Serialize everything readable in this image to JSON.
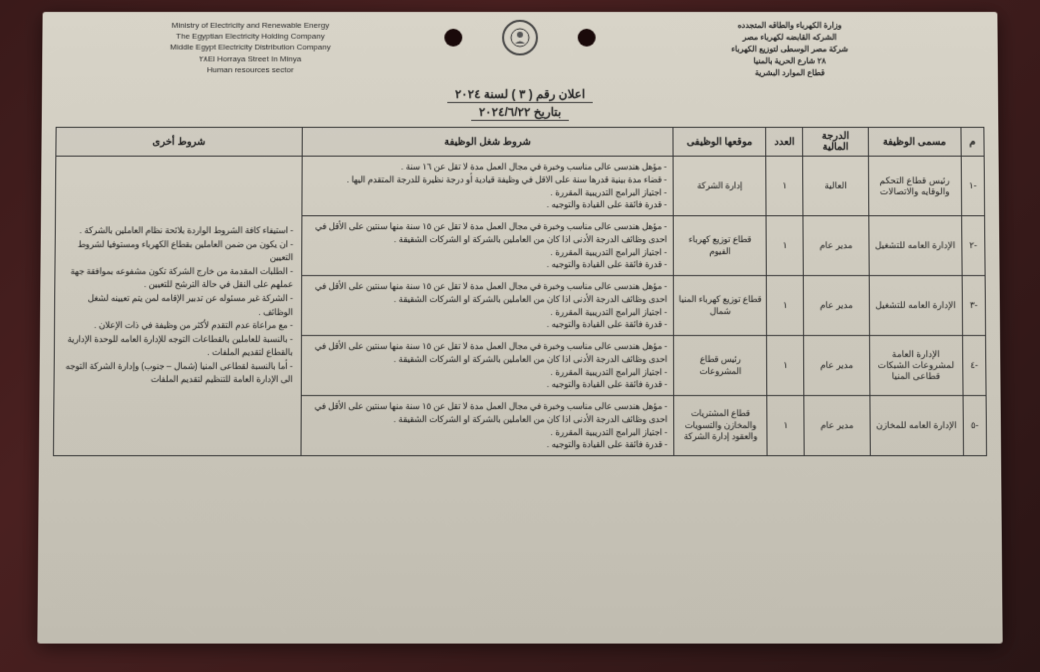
{
  "header": {
    "left": {
      "l1": "Ministry of Electricity and Renewable Energy",
      "l2": "The Egyptian Electricity Holding Company",
      "l3": "Middle Egypt Electricity Distribution Company",
      "l4": "٢٨El Horraya Street In Minya",
      "l5": "Human resources sector"
    },
    "right": {
      "l1": "وزارة الكهرباء والطاقه المتجدده",
      "l2": "الشركه القابضه لكهرباء مصر",
      "l3": "شركة مصر الوسطى لتوزيع الكهرباء",
      "l4": "٢٨ شارع الحرية بالمنيا",
      "l5": "قطاع الموارد البشرية"
    }
  },
  "title": {
    "line1": "اعلان رقم ( ٣ ) لسنة ٢٠٢٤",
    "line2": "بتاريخ ٢٠٢٤/٦/٢٢"
  },
  "columns": {
    "c0": "م",
    "c1": "مسمى الوظيفة",
    "c2": "الدرجة المالية",
    "c3": "العدد",
    "c4": "موقعها الوظيفى",
    "c5": "شروط شغل الوظيفة",
    "c6": "شروط أخرى"
  },
  "rows": [
    {
      "idx": "-١",
      "title": "رئيس قطاع التحكم والوقايه والاتصالات",
      "grade": "العالية",
      "count": "١",
      "loc": "إدارة الشركة",
      "cond": "- مؤهل هندسى عالى مناسب وخبرة في مجال العمل مدة لا تقل عن ١٦ سنة .\n- قضاء مدة بينية قدرها سنة على الاقل في وظيفة قيادية أو درجة نظيرة للدرجة المتقدم اليها .\n- اجتياز البرامج التدريبية المقررة .\n- قدرة فائقة على القيادة والتوجيه ."
    },
    {
      "idx": "-٢",
      "title": "الإدارة العامه للتشغيل",
      "grade": "مدير عام",
      "count": "١",
      "loc": "قطاع توزيع كهرباء الفيوم",
      "cond": "- مؤهل هندسى عالى مناسب وخبرة في مجال العمل مدة لا تقل عن ١٥ سنة منها سنتين على الأقل في احدى وظائف الدرجة الأدنى اذا كان من العاملين بالشركة او الشركات الشقيقة .\n- اجتياز البرامج التدريبية المقررة .\n- قدرة فائقة على القيادة والتوجيه ."
    },
    {
      "idx": "-٣",
      "title": "الإدارة العامه للتشغيل",
      "grade": "مدير عام",
      "count": "١",
      "loc": "قطاع توزيع كهرباء المنيا شمال",
      "cond": "- مؤهل هندسى عالى مناسب وخبرة في مجال العمل مدة لا تقل عن ١٥ سنة منها سنتين على الأقل في احدى وظائف الدرجة الأدنى اذا كان من العاملين بالشركة او الشركات الشقيقة .\n- اجتياز البرامج التدريبية المقررة .\n- قدرة فائقة على القيادة والتوجيه ."
    },
    {
      "idx": "-٤",
      "title": "الإدارة العامة لمشروعات الشبكات قطاعى المنيا",
      "grade": "مدير عام",
      "count": "١",
      "loc": "رئيس قطاع المشروعات",
      "cond": "- مؤهل هندسى عالى مناسب وخبرة في مجال العمل مدة لا تقل عن ١٥ سنة منها سنتين على الأقل في احدى وظائف الدرجة الأدنى اذا كان من العاملين بالشركة او الشركات الشقيقة .\n- اجتياز البرامج التدريبية المقررة .\n- قدرة فائقة على القيادة والتوجيه ."
    },
    {
      "idx": "-٥",
      "title": "الإدارة العامه للمخازن",
      "grade": "مدير عام",
      "count": "١",
      "loc": "قطاع المشتريات والمخازن والتسويات والعقود إدارة الشركة",
      "cond": "- مؤهل هندسى عالى مناسب وخبرة في مجال العمل مدة لا تقل عن ١٥ سنة منها سنتين على الأقل في احدى وظائف الدرجة الأدنى اذا كان من العاملين بالشركة او الشركات الشقيقة .\n- اجتياز البرامج التدريبية المقررة .\n- قدرة فائقة على القيادة والتوجيه ."
    }
  ],
  "other_conditions": "- استيفاء كافة الشروط الواردة بلائحة نظام العاملين بالشركة .\n- ان يكون من ضمن العاملين بقطاع الكهرباء ومستوفيا لشروط التعيين\n- الطلبات المقدمة من خارج الشركة تكون مشفوعه بموافقة جهة عملهم على النقل في حالة الترشح للتعيين .\n- الشركة غير مسئوله عن تدبير الإقامه لمن يتم تعيينه لشغل الوظائف .\n- مع مراعاة عدم التقدم لأكثر من وظيفة في ذات الإعلان .\n- بالنسبة للعاملين بالقطاعات التوجه للإدارة العامه للوحدة الإدارية بالقطاع لتقديم الملفات .\n- أما بالنسبة لقطاعى المنيا (شمال – جنوب) وإدارة الشركة التوجه الى الإدارة العامة للتنظيم لتقديم الملفات"
}
